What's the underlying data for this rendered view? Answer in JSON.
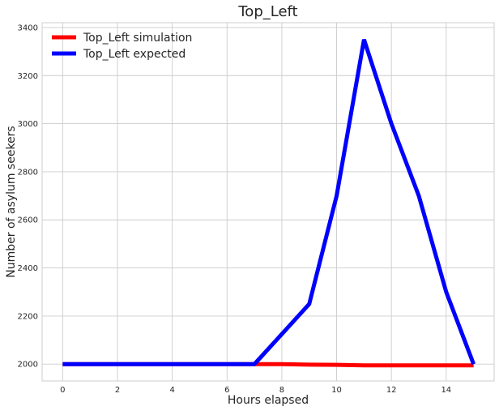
{
  "chart_data": {
    "type": "line",
    "title": "Top_Left",
    "xlabel": "Hours elapsed",
    "ylabel": "Number of asylum seekers",
    "xlim": [
      -0.75,
      15.75
    ],
    "ylim": [
      1930,
      3420
    ],
    "xticks": [
      0,
      2,
      4,
      6,
      8,
      10,
      12,
      14
    ],
    "yticks": [
      2000,
      2200,
      2400,
      2600,
      2800,
      3000,
      3200,
      3400
    ],
    "grid": true,
    "legend_position": "top-left",
    "series": [
      {
        "name": "Top_Left simulation",
        "color": "#ff0000",
        "x": [
          0,
          1,
          2,
          3,
          4,
          5,
          6,
          7,
          8,
          9,
          10,
          11,
          12,
          13,
          14,
          15
        ],
        "y": [
          2000,
          2000,
          2000,
          2000,
          2000,
          2000,
          2000,
          2000,
          2000,
          1998,
          1997,
          1995,
          1995,
          1995,
          1995,
          1995
        ]
      },
      {
        "name": "Top_Left expected",
        "color": "#0000ff",
        "x": [
          0,
          1,
          2,
          3,
          4,
          5,
          6,
          7,
          8,
          9,
          10,
          11,
          12,
          13,
          14,
          15
        ],
        "y": [
          2000,
          2000,
          2000,
          2000,
          2000,
          2000,
          2000,
          2000,
          2125,
          2250,
          2700,
          3350,
          3000,
          2700,
          2300,
          2000
        ]
      }
    ]
  }
}
